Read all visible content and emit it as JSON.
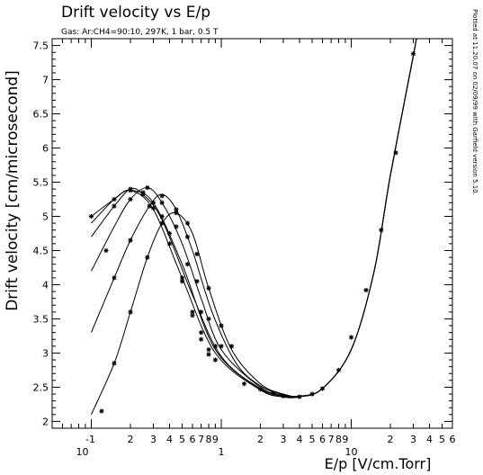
{
  "chart_data": {
    "type": "line",
    "title": "Drift velocity vs E/p",
    "subtitle": "Gas: Ar:CH4=90:10, 297K, 1 bar, 0.5 T",
    "side_note": "Plotted at 11.20.07 on 02/09/99 with Garfield version 5.10.",
    "xlabel": "E/p [V/cm.Torr]",
    "ylabel": "Drift velocity [cm/microsecond]",
    "xscale": "log",
    "xlim": [
      0.05,
      60
    ],
    "ylim": [
      1.9,
      7.6
    ],
    "grid": false,
    "x_major_labels": [
      {
        "x": 0.1,
        "text": "-1",
        "sup_base": "10"
      },
      {
        "x": 1,
        "text": "1"
      },
      {
        "x": 10,
        "text": "10"
      }
    ],
    "x_minor_labels": [
      {
        "x": 0.2,
        "text": "2"
      },
      {
        "x": 0.3,
        "text": "3"
      },
      {
        "x": 0.4,
        "text": "4"
      },
      {
        "x": 0.5,
        "text": "5"
      },
      {
        "x": 0.6,
        "text": "6"
      },
      {
        "x": 0.7,
        "text": "7"
      },
      {
        "x": 0.8,
        "text": "8"
      },
      {
        "x": 0.9,
        "text": "9"
      },
      {
        "x": 2,
        "text": "2"
      },
      {
        "x": 3,
        "text": "3"
      },
      {
        "x": 4,
        "text": "4"
      },
      {
        "x": 5,
        "text": "5"
      },
      {
        "x": 6,
        "text": "6"
      },
      {
        "x": 7,
        "text": "7"
      },
      {
        "x": 8,
        "text": "8"
      },
      {
        "x": 9,
        "text": "9"
      },
      {
        "x": 20,
        "text": "2"
      },
      {
        "x": 30,
        "text": "3"
      },
      {
        "x": 40,
        "text": "4"
      },
      {
        "x": 50,
        "text": "5"
      },
      {
        "x": 60,
        "text": "6"
      }
    ],
    "y_ticks": [
      {
        "y": 2,
        "text": "2"
      },
      {
        "y": 2.5,
        "text": "2.5"
      },
      {
        "y": 3,
        "text": "3"
      },
      {
        "y": 3.5,
        "text": "3.5"
      },
      {
        "y": 4,
        "text": "4"
      },
      {
        "y": 4.5,
        "text": "4.5"
      },
      {
        "y": 5,
        "text": "5"
      },
      {
        "y": 5.5,
        "text": "5.5"
      },
      {
        "y": 6,
        "text": "6"
      },
      {
        "y": 6.5,
        "text": "6.5"
      },
      {
        "y": 7,
        "text": "7"
      },
      {
        "y": 7.5,
        "text": "7.5"
      }
    ],
    "series": [
      {
        "points": [
          [
            0.1,
            5.0
          ],
          [
            0.15,
            5.25
          ],
          [
            0.2,
            5.38
          ],
          [
            0.3,
            5.1
          ],
          [
            0.5,
            4.1
          ],
          [
            0.9,
            3.0
          ],
          [
            2,
            2.46
          ],
          [
            3,
            2.36
          ],
          [
            4,
            2.36
          ],
          [
            6,
            2.48
          ],
          [
            10,
            3.05
          ],
          [
            15,
            4.2
          ],
          [
            20,
            5.6
          ],
          [
            30,
            7.35
          ],
          [
            33,
            7.8
          ]
        ]
      },
      {
        "points": [
          [
            0.1,
            4.9
          ],
          [
            0.15,
            5.25
          ],
          [
            0.2,
            5.38
          ],
          [
            0.3,
            5.2
          ],
          [
            0.5,
            4.3
          ],
          [
            0.9,
            3.05
          ],
          [
            2,
            2.47
          ],
          [
            3,
            2.36
          ],
          [
            4,
            2.36
          ],
          [
            6,
            2.48
          ],
          [
            10,
            3.05
          ],
          [
            15,
            4.2
          ],
          [
            20,
            5.6
          ],
          [
            30,
            7.35
          ],
          [
            33,
            7.8
          ]
        ]
      },
      {
        "points": [
          [
            0.1,
            4.7
          ],
          [
            0.15,
            5.15
          ],
          [
            0.2,
            5.4
          ],
          [
            0.25,
            5.32
          ],
          [
            0.35,
            4.95
          ],
          [
            0.6,
            3.85
          ],
          [
            1,
            2.95
          ],
          [
            2,
            2.48
          ],
          [
            3,
            2.37
          ],
          [
            4,
            2.36
          ],
          [
            6,
            2.48
          ],
          [
            10,
            3.05
          ],
          [
            15,
            4.2
          ],
          [
            20,
            5.6
          ],
          [
            30,
            7.35
          ],
          [
            33,
            7.8
          ]
        ]
      },
      {
        "points": [
          [
            0.1,
            4.2
          ],
          [
            0.15,
            4.85
          ],
          [
            0.2,
            5.25
          ],
          [
            0.27,
            5.42
          ],
          [
            0.35,
            5.2
          ],
          [
            0.5,
            4.6
          ],
          [
            0.7,
            3.8
          ],
          [
            1,
            3.05
          ],
          [
            2,
            2.5
          ],
          [
            3,
            2.38
          ],
          [
            4,
            2.36
          ],
          [
            6,
            2.48
          ],
          [
            10,
            3.05
          ],
          [
            15,
            4.2
          ],
          [
            20,
            5.6
          ],
          [
            30,
            7.35
          ],
          [
            33,
            7.8
          ]
        ]
      },
      {
        "points": [
          [
            0.1,
            3.3
          ],
          [
            0.15,
            4.1
          ],
          [
            0.2,
            4.65
          ],
          [
            0.28,
            5.15
          ],
          [
            0.35,
            5.32
          ],
          [
            0.45,
            5.1
          ],
          [
            0.6,
            4.5
          ],
          [
            0.85,
            3.6
          ],
          [
            1.3,
            2.85
          ],
          [
            2,
            2.52
          ],
          [
            3,
            2.39
          ],
          [
            4,
            2.37
          ],
          [
            6,
            2.48
          ],
          [
            10,
            3.05
          ],
          [
            15,
            4.2
          ],
          [
            20,
            5.6
          ],
          [
            30,
            7.35
          ],
          [
            33,
            7.8
          ]
        ]
      },
      {
        "points": [
          [
            0.1,
            2.1
          ],
          [
            0.15,
            2.85
          ],
          [
            0.2,
            3.6
          ],
          [
            0.27,
            4.4
          ],
          [
            0.35,
            4.9
          ],
          [
            0.45,
            5.05
          ],
          [
            0.6,
            4.75
          ],
          [
            0.8,
            3.95
          ],
          [
            1.2,
            3.05
          ],
          [
            2,
            2.55
          ],
          [
            3,
            2.4
          ],
          [
            4,
            2.37
          ],
          [
            6,
            2.48
          ],
          [
            10,
            3.05
          ],
          [
            15,
            4.2
          ],
          [
            20,
            5.6
          ],
          [
            30,
            7.35
          ],
          [
            33,
            7.8
          ]
        ]
      }
    ],
    "markers": [
      [
        0.1,
        5.0
      ],
      [
        0.15,
        5.25
      ],
      [
        0.2,
        5.38
      ],
      [
        0.25,
        5.35
      ],
      [
        0.3,
        5.2
      ],
      [
        0.35,
        5.0
      ],
      [
        0.4,
        4.75
      ],
      [
        0.5,
        4.1
      ],
      [
        0.6,
        3.6
      ],
      [
        0.7,
        3.3
      ],
      [
        0.8,
        3.05
      ],
      [
        0.9,
        2.9
      ],
      [
        0.15,
        5.15
      ],
      [
        0.2,
        5.4
      ],
      [
        0.25,
        5.32
      ],
      [
        0.3,
        5.12
      ],
      [
        0.4,
        4.6
      ],
      [
        0.5,
        4.05
      ],
      [
        0.6,
        3.55
      ],
      [
        0.7,
        3.2
      ],
      [
        0.8,
        2.98
      ],
      [
        0.13,
        4.5
      ],
      [
        0.2,
        5.25
      ],
      [
        0.27,
        5.42
      ],
      [
        0.35,
        5.2
      ],
      [
        0.45,
        4.85
      ],
      [
        0.55,
        4.3
      ],
      [
        0.7,
        3.6
      ],
      [
        0.9,
        3.1
      ],
      [
        0.15,
        4.1
      ],
      [
        0.2,
        4.65
      ],
      [
        0.28,
        5.15
      ],
      [
        0.35,
        5.3
      ],
      [
        0.45,
        5.1
      ],
      [
        0.55,
        4.7
      ],
      [
        0.65,
        4.05
      ],
      [
        0.8,
        3.5
      ],
      [
        1.0,
        3.1
      ],
      [
        0.15,
        2.85
      ],
      [
        0.2,
        3.6
      ],
      [
        0.27,
        4.4
      ],
      [
        0.35,
        4.9
      ],
      [
        0.45,
        5.05
      ],
      [
        0.55,
        4.9
      ],
      [
        0.65,
        4.45
      ],
      [
        0.8,
        3.95
      ],
      [
        1.0,
        3.4
      ],
      [
        1.2,
        3.1
      ],
      [
        0.12,
        2.15
      ],
      [
        1.5,
        2.55
      ],
      [
        2,
        2.47
      ],
      [
        2.5,
        2.41
      ],
      [
        3,
        2.37
      ],
      [
        4,
        2.36
      ],
      [
        5,
        2.4
      ],
      [
        6,
        2.48
      ],
      [
        8,
        2.75
      ],
      [
        10,
        3.23
      ],
      [
        13,
        3.92
      ],
      [
        17,
        4.8
      ],
      [
        22,
        5.93
      ],
      [
        30,
        7.38
      ]
    ]
  }
}
